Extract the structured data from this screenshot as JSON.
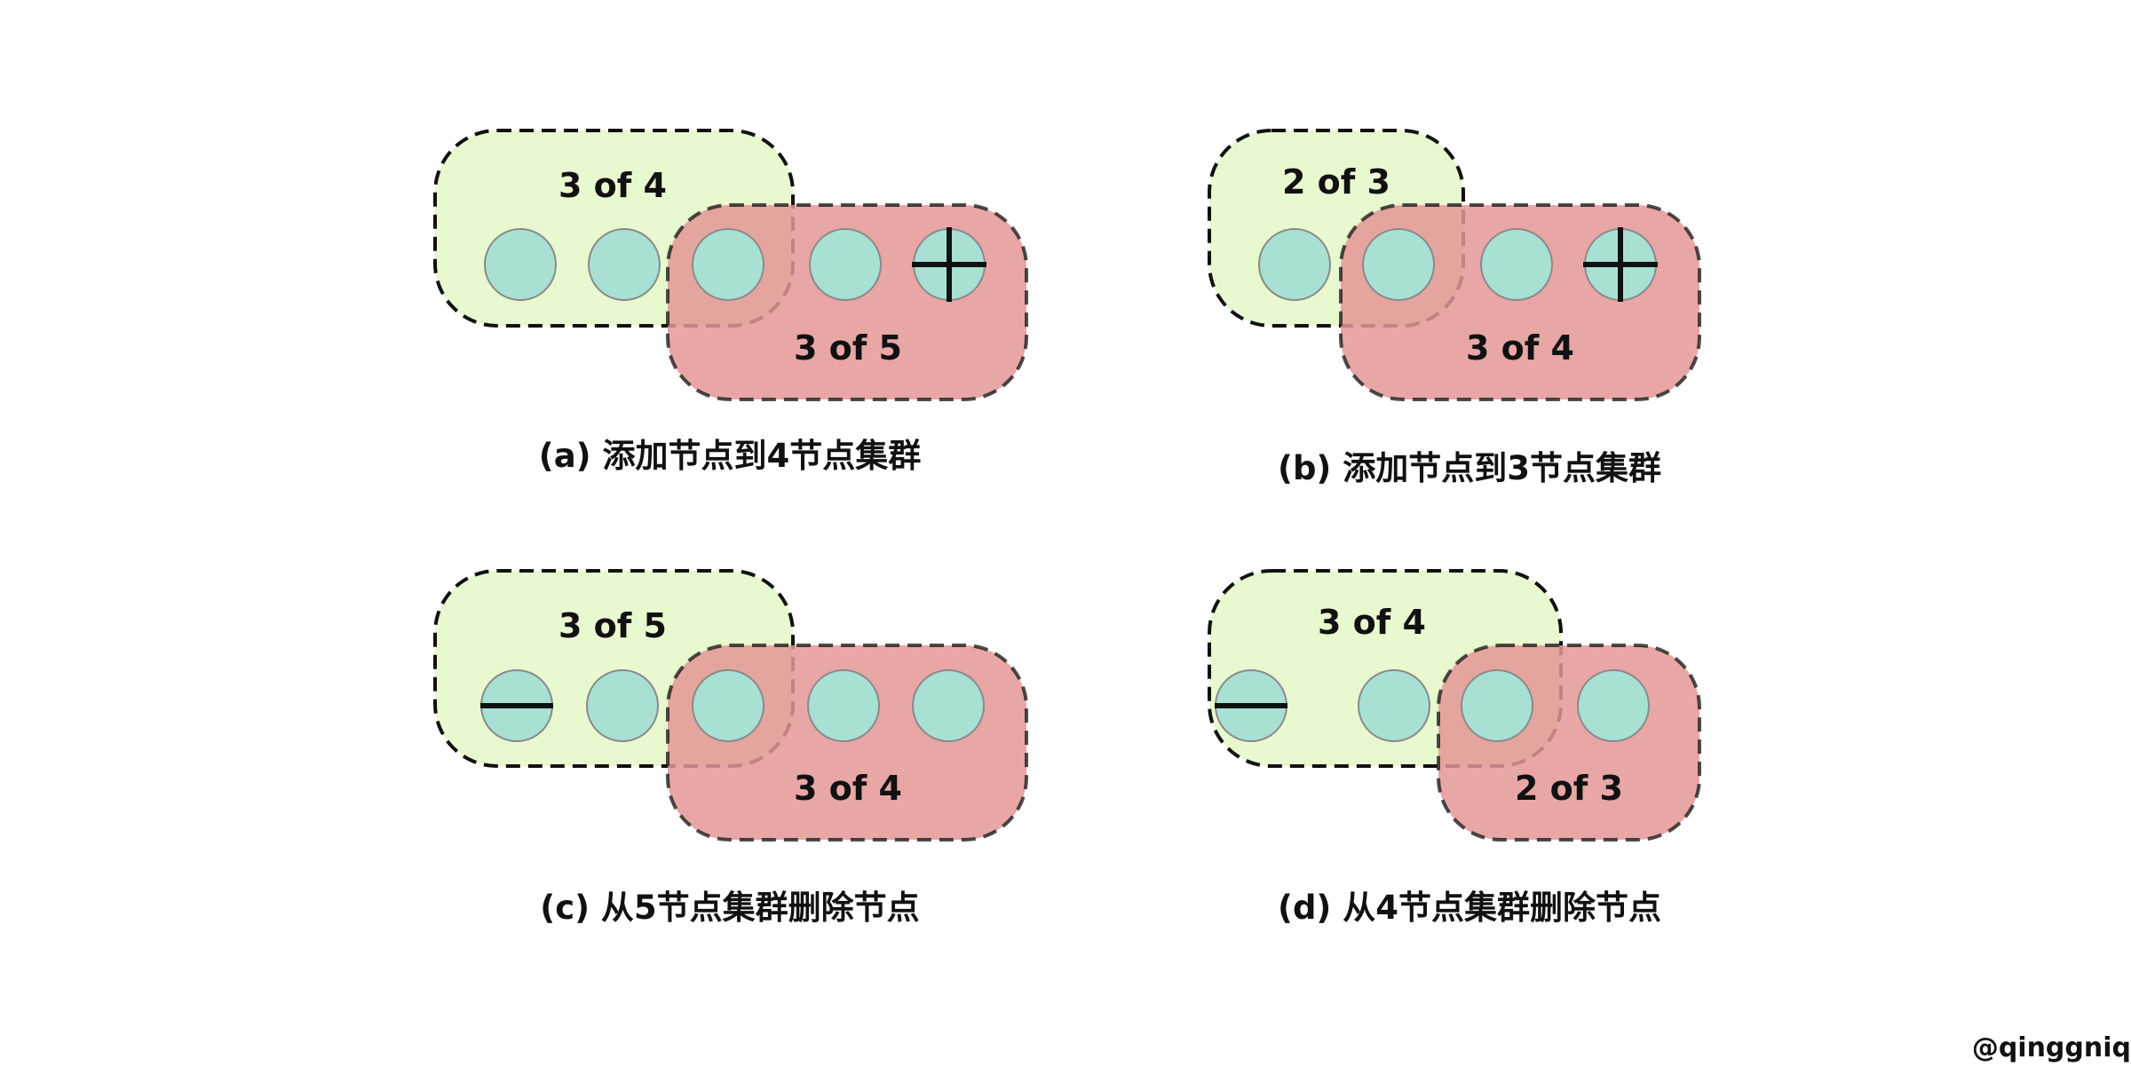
{
  "colors": {
    "old_config_fill": "#e8f9cf",
    "new_config_fill": "#e49797",
    "node_fill": "#a8e0d4",
    "node_stroke": "#8a8a8a",
    "border": "#111111"
  },
  "panels": [
    {
      "id": "a",
      "old_label": "3 of 4",
      "new_label": "3 of 5",
      "caption": "(a) 添加节点到4节点集群",
      "node_marks": [
        "",
        "",
        "",
        "",
        "plus"
      ]
    },
    {
      "id": "b",
      "old_label": "2 of 3",
      "new_label": "3 of 4",
      "caption": "(b) 添加节点到3节点集群",
      "node_marks": [
        "",
        "",
        "",
        "plus"
      ]
    },
    {
      "id": "c",
      "old_label": "3 of 5",
      "new_label": "3 of 4",
      "caption": "(c) 从5节点集群删除节点",
      "node_marks": [
        "minus",
        "",
        "",
        "",
        ""
      ]
    },
    {
      "id": "d",
      "old_label": "3 of 4",
      "new_label": "2 of 3",
      "caption": "(d) 从4节点集群删除节点",
      "node_marks": [
        "minus",
        "",
        "",
        ""
      ]
    }
  ],
  "watermark": "@qinggniq"
}
